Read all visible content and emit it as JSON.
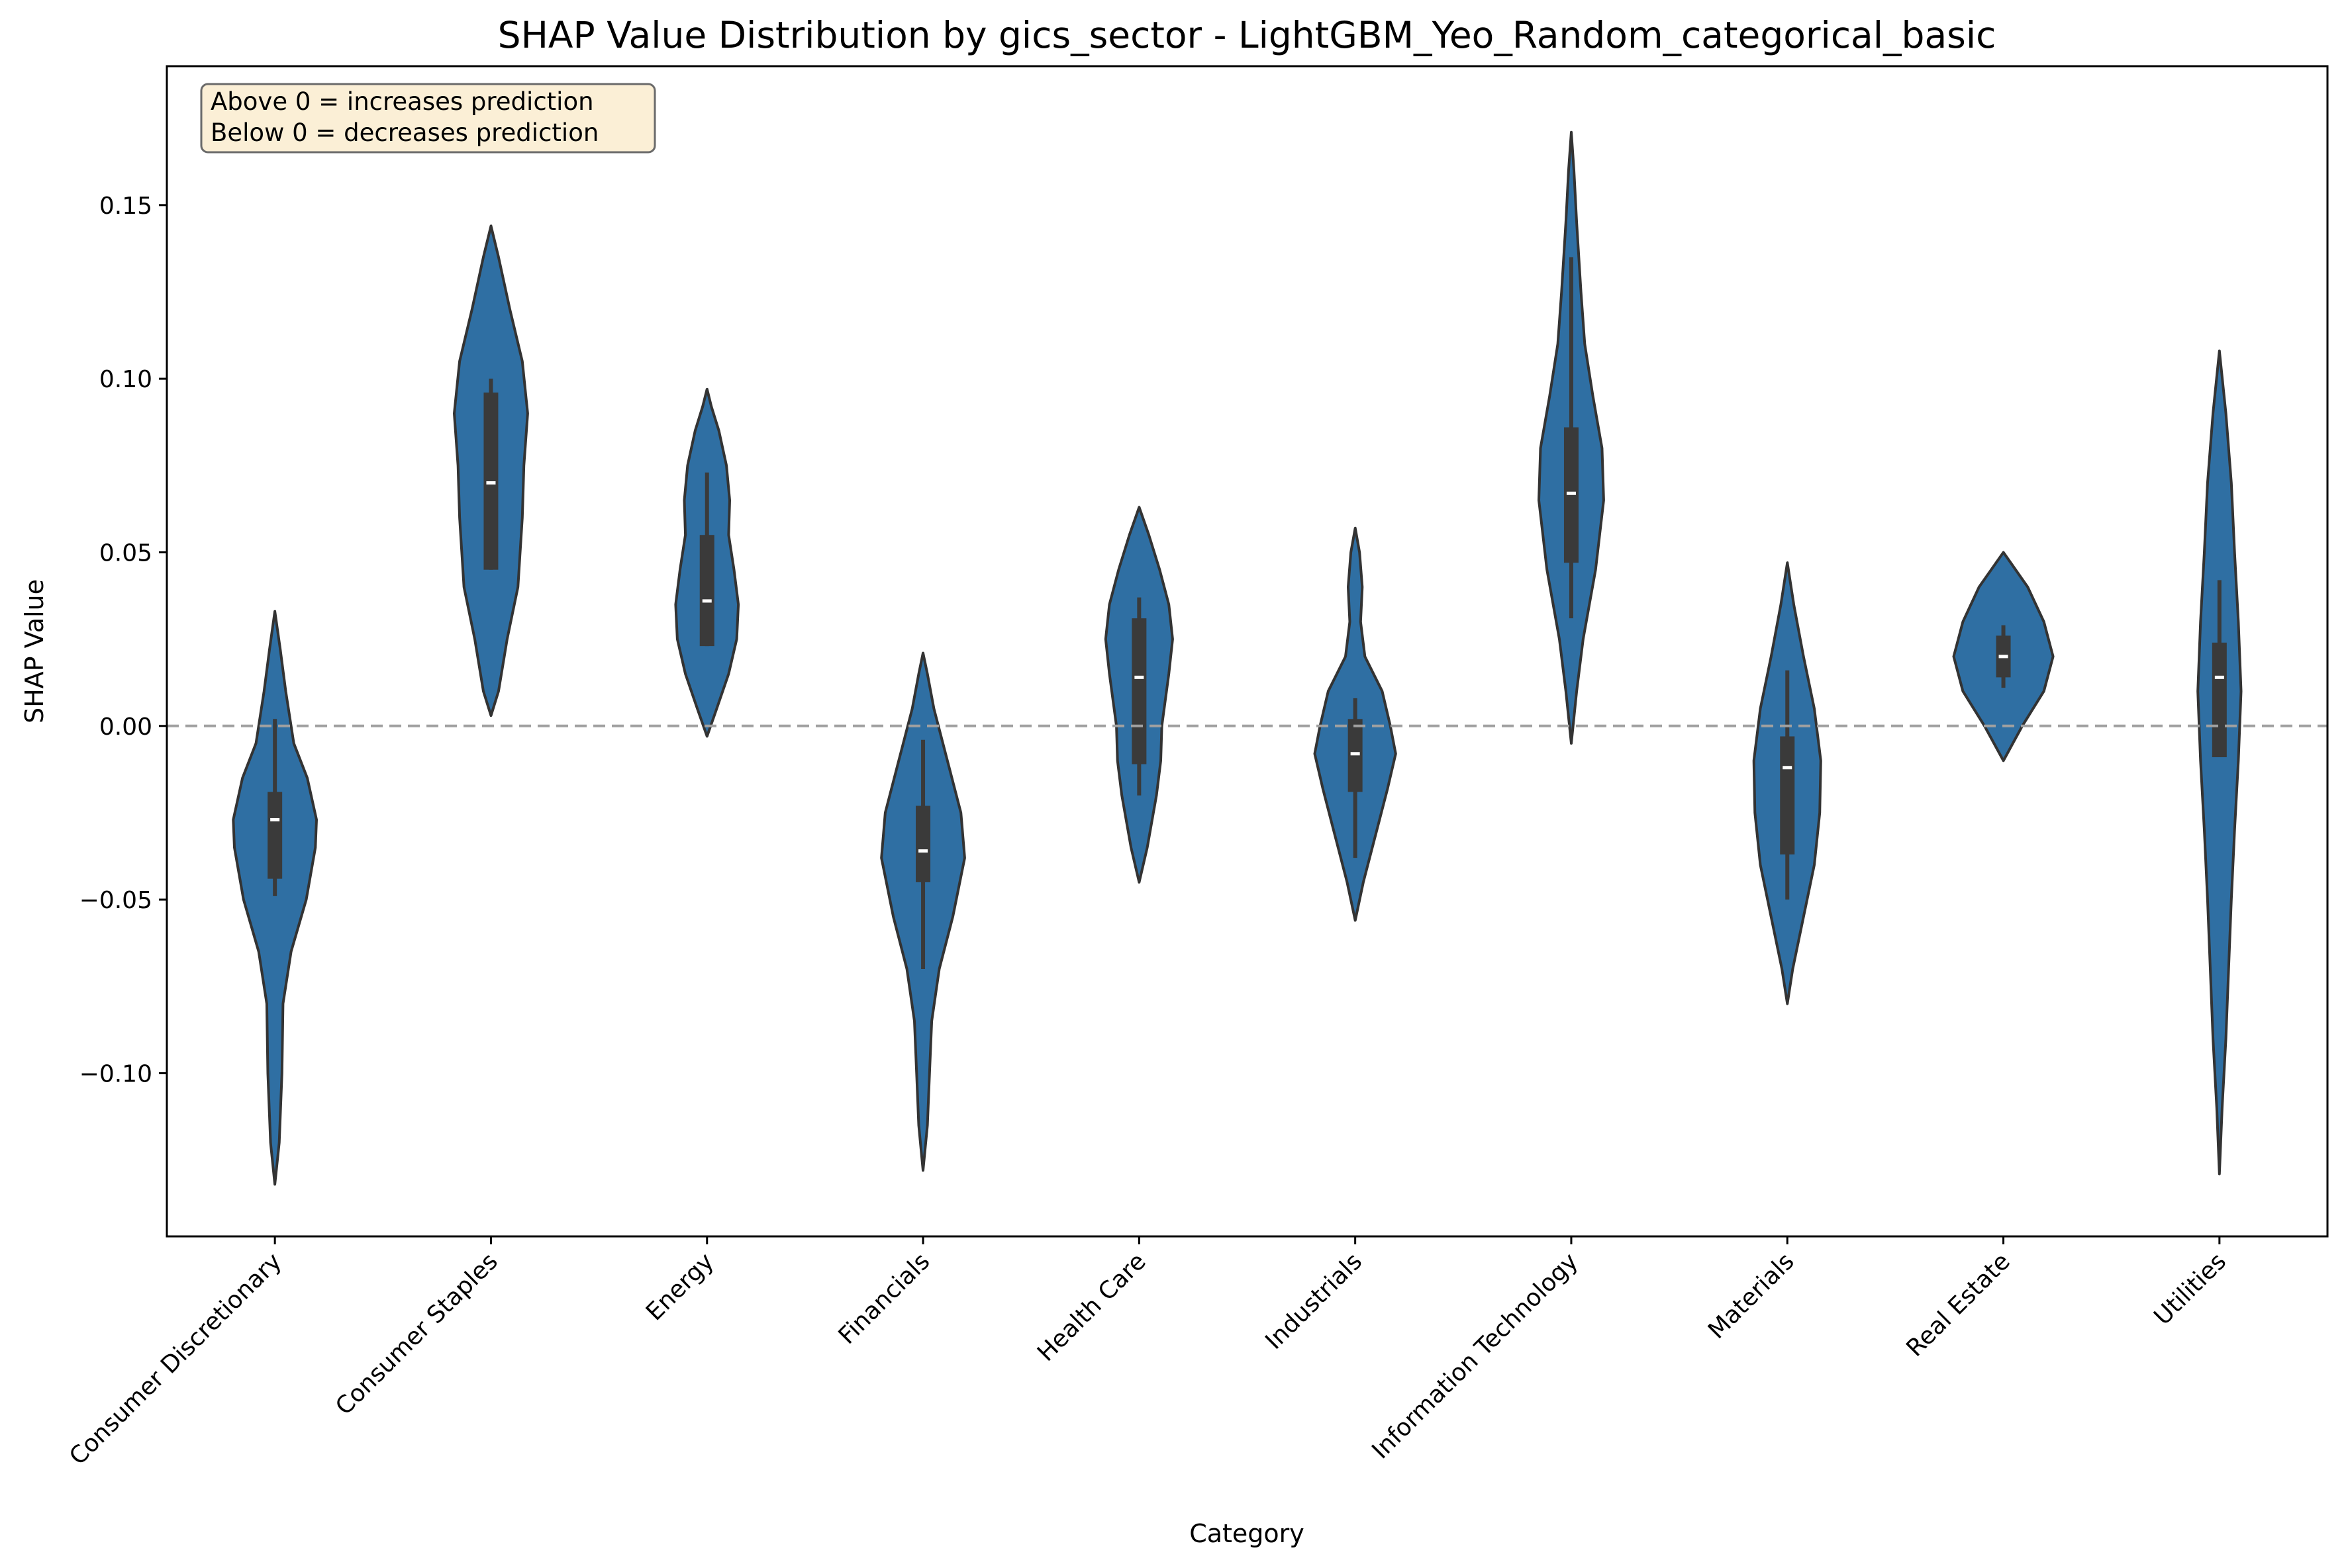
{
  "chart_data": {
    "type": "violin",
    "title": "SHAP Value Distribution by gics_sector - LightGBM_Yeo_Random_categorical_basic",
    "xlabel": "Category",
    "ylabel": "SHAP Value",
    "ylim": [
      -0.147,
      0.19
    ],
    "yticks": [
      {
        "value": 0.15,
        "label": "0.15"
      },
      {
        "value": 0.1,
        "label": "0.10"
      },
      {
        "value": 0.05,
        "label": "0.05"
      },
      {
        "value": 0.0,
        "label": "0.00"
      },
      {
        "value": -0.05,
        "label": "−0.05"
      },
      {
        "value": -0.1,
        "label": "−0.10"
      }
    ],
    "reference_line": {
      "value": 0,
      "style": "dashed",
      "color": "#a0a0a0"
    },
    "annotation": {
      "lines": [
        "Above 0 = increases prediction",
        "Below 0 = decreases prediction"
      ],
      "placement": "top-left"
    },
    "violin_color": "#2f6fa3",
    "violin_edge_color": "#333333",
    "box_color": "#3a3a3a",
    "median_color": "#ffffff",
    "categories": [
      "Consumer Discretionary",
      "Consumer Staples",
      "Energy",
      "Financials",
      "Health Care",
      "Industrials",
      "Information Technology",
      "Materials",
      "Real Estate",
      "Utilities"
    ],
    "series": [
      {
        "category": "Consumer Discretionary",
        "min": -0.132,
        "max": 0.033,
        "q1": -0.044,
        "median": -0.027,
        "q3": -0.019,
        "whisker_low": -0.049,
        "whisker_high": 0.002,
        "profile": [
          [
            -0.132,
            0.0
          ],
          [
            -0.12,
            0.008
          ],
          [
            -0.1,
            0.013
          ],
          [
            -0.08,
            0.015
          ],
          [
            -0.065,
            0.03
          ],
          [
            -0.05,
            0.058
          ],
          [
            -0.035,
            0.075
          ],
          [
            -0.027,
            0.077
          ],
          [
            -0.015,
            0.06
          ],
          [
            -0.005,
            0.035
          ],
          [
            0.01,
            0.02
          ],
          [
            0.022,
            0.01
          ],
          [
            0.033,
            0.0
          ]
        ]
      },
      {
        "category": "Consumer Staples",
        "min": 0.003,
        "max": 0.144,
        "q1": 0.045,
        "median": 0.07,
        "q3": 0.096,
        "whisker_low": 0.045,
        "whisker_high": 0.1,
        "profile": [
          [
            0.003,
            0.0
          ],
          [
            0.01,
            0.014
          ],
          [
            0.025,
            0.03
          ],
          [
            0.04,
            0.05
          ],
          [
            0.06,
            0.058
          ],
          [
            0.075,
            0.061
          ],
          [
            0.09,
            0.068
          ],
          [
            0.105,
            0.058
          ],
          [
            0.12,
            0.035
          ],
          [
            0.135,
            0.014
          ],
          [
            0.144,
            0.0
          ]
        ]
      },
      {
        "category": "Energy",
        "min": -0.003,
        "max": 0.097,
        "q1": 0.023,
        "median": 0.036,
        "q3": 0.055,
        "whisker_low": 0.023,
        "whisker_high": 0.073,
        "profile": [
          [
            -0.003,
            0.0
          ],
          [
            0.005,
            0.018
          ],
          [
            0.015,
            0.04
          ],
          [
            0.025,
            0.055
          ],
          [
            0.035,
            0.058
          ],
          [
            0.045,
            0.05
          ],
          [
            0.055,
            0.04
          ],
          [
            0.065,
            0.042
          ],
          [
            0.075,
            0.036
          ],
          [
            0.085,
            0.022
          ],
          [
            0.092,
            0.008
          ],
          [
            0.097,
            0.0
          ]
        ]
      },
      {
        "category": "Financials",
        "min": -0.128,
        "max": 0.021,
        "q1": -0.045,
        "median": -0.036,
        "q3": -0.023,
        "whisker_low": -0.07,
        "whisker_high": -0.004,
        "profile": [
          [
            -0.128,
            0.0
          ],
          [
            -0.115,
            0.008
          ],
          [
            -0.1,
            0.012
          ],
          [
            -0.085,
            0.016
          ],
          [
            -0.07,
            0.03
          ],
          [
            -0.055,
            0.055
          ],
          [
            -0.038,
            0.077
          ],
          [
            -0.025,
            0.07
          ],
          [
            -0.01,
            0.045
          ],
          [
            0.005,
            0.02
          ],
          [
            0.015,
            0.008
          ],
          [
            0.021,
            0.0
          ]
        ]
      },
      {
        "category": "Health Care",
        "min": -0.045,
        "max": 0.063,
        "q1": -0.011,
        "median": 0.014,
        "q3": 0.031,
        "whisker_low": -0.02,
        "whisker_high": 0.037,
        "profile": [
          [
            -0.045,
            0.0
          ],
          [
            -0.035,
            0.015
          ],
          [
            -0.02,
            0.032
          ],
          [
            -0.01,
            0.04
          ],
          [
            0.0,
            0.042
          ],
          [
            0.015,
            0.055
          ],
          [
            0.025,
            0.062
          ],
          [
            0.035,
            0.055
          ],
          [
            0.045,
            0.038
          ],
          [
            0.055,
            0.018
          ],
          [
            0.063,
            0.0
          ]
        ]
      },
      {
        "category": "Industrials",
        "min": -0.056,
        "max": 0.057,
        "q1": -0.019,
        "median": -0.008,
        "q3": 0.002,
        "whisker_low": -0.038,
        "whisker_high": 0.008,
        "profile": [
          [
            -0.056,
            0.0
          ],
          [
            -0.045,
            0.015
          ],
          [
            -0.03,
            0.04
          ],
          [
            -0.018,
            0.06
          ],
          [
            -0.008,
            0.075
          ],
          [
            0.0,
            0.065
          ],
          [
            0.01,
            0.05
          ],
          [
            0.02,
            0.018
          ],
          [
            0.03,
            0.01
          ],
          [
            0.04,
            0.013
          ],
          [
            0.05,
            0.008
          ],
          [
            0.057,
            0.0
          ]
        ]
      },
      {
        "category": "Information Technology",
        "min": -0.005,
        "max": 0.171,
        "q1": 0.047,
        "median": 0.067,
        "q3": 0.086,
        "whisker_low": 0.031,
        "whisker_high": 0.135,
        "profile": [
          [
            -0.005,
            0.0
          ],
          [
            0.01,
            0.01
          ],
          [
            0.025,
            0.022
          ],
          [
            0.045,
            0.045
          ],
          [
            0.065,
            0.06
          ],
          [
            0.08,
            0.057
          ],
          [
            0.095,
            0.04
          ],
          [
            0.11,
            0.025
          ],
          [
            0.125,
            0.018
          ],
          [
            0.145,
            0.01
          ],
          [
            0.16,
            0.005
          ],
          [
            0.171,
            0.0
          ]
        ]
      },
      {
        "category": "Materials",
        "min": -0.08,
        "max": 0.047,
        "q1": -0.037,
        "median": -0.012,
        "q3": -0.003,
        "whisker_low": -0.05,
        "whisker_high": 0.016,
        "profile": [
          [
            -0.08,
            0.0
          ],
          [
            -0.07,
            0.01
          ],
          [
            -0.055,
            0.03
          ],
          [
            -0.04,
            0.05
          ],
          [
            -0.025,
            0.06
          ],
          [
            -0.01,
            0.062
          ],
          [
            0.005,
            0.05
          ],
          [
            0.02,
            0.03
          ],
          [
            0.035,
            0.012
          ],
          [
            0.047,
            0.0
          ]
        ]
      },
      {
        "category": "Real Estate",
        "min": -0.01,
        "max": 0.05,
        "q1": 0.014,
        "median": 0.02,
        "q3": 0.026,
        "whisker_low": 0.011,
        "whisker_high": 0.029,
        "profile": [
          [
            -0.01,
            0.0
          ],
          [
            0.0,
            0.035
          ],
          [
            0.01,
            0.075
          ],
          [
            0.02,
            0.092
          ],
          [
            0.03,
            0.075
          ],
          [
            0.04,
            0.045
          ],
          [
            0.05,
            0.0
          ]
        ]
      },
      {
        "category": "Utilities",
        "min": -0.129,
        "max": 0.108,
        "q1": -0.009,
        "median": 0.014,
        "q3": 0.024,
        "whisker_low": -0.009,
        "whisker_high": 0.042,
        "profile": [
          [
            -0.129,
            0.0
          ],
          [
            -0.11,
            0.005
          ],
          [
            -0.09,
            0.012
          ],
          [
            -0.07,
            0.017
          ],
          [
            -0.05,
            0.022
          ],
          [
            -0.03,
            0.028
          ],
          [
            -0.01,
            0.035
          ],
          [
            0.01,
            0.04
          ],
          [
            0.03,
            0.035
          ],
          [
            0.05,
            0.028
          ],
          [
            0.07,
            0.022
          ],
          [
            0.09,
            0.012
          ],
          [
            0.108,
            0.0
          ]
        ]
      }
    ]
  }
}
